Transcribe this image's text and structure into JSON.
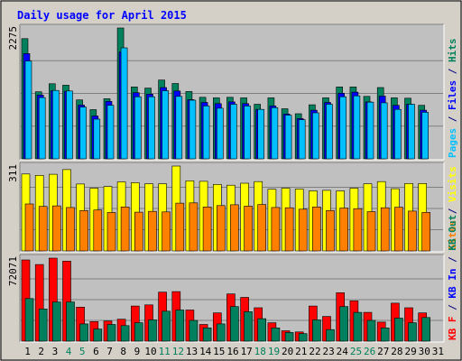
{
  "chart_data": {
    "type": "bar",
    "title": "Daily usage for April 2015",
    "days": [
      "1",
      "2",
      "3",
      "4",
      "5",
      "6",
      "7",
      "8",
      "9",
      "10",
      "11",
      "12",
      "13",
      "14",
      "15",
      "16",
      "17",
      "18",
      "19",
      "20",
      "21",
      "22",
      "23",
      "24",
      "25",
      "26",
      "27",
      "28",
      "29",
      "30",
      "31"
    ],
    "weekend_days": [
      "4",
      "5",
      "11",
      "12",
      "18",
      "19",
      "25",
      "26"
    ],
    "panels": [
      {
        "max_label": "2275",
        "ymax": 2275,
        "side_label": [
          {
            "text": "Pages",
            "color": "#00C0FF"
          },
          {
            "text": " / ",
            "color": "#000080"
          },
          {
            "text": "Files",
            "color": "#0000FF"
          },
          {
            "text": " / ",
            "color": "#000080"
          },
          {
            "text": "Hits",
            "color": "#00805C"
          }
        ],
        "series": [
          {
            "name": "Hits",
            "color": "#00805C",
            "values": [
              2090,
              1165,
              1305,
              1280,
              1025,
              855,
              1045,
              2275,
              1250,
              1230,
              1370,
              1310,
              1170,
              1070,
              1060,
              1070,
              1060,
              950,
              1060,
              870,
              785,
              940,
              1060,
              1250,
              1250,
              1085,
              1240,
              1060,
              1055,
              930
            ]
          },
          {
            "name": "Files",
            "color": "#0000FF",
            "values": [
              1830,
              1110,
              1185,
              1175,
              935,
              745,
              1000,
              1860,
              1150,
              1125,
              1240,
              1180,
              1030,
              980,
              960,
              990,
              960,
              860,
              920,
              780,
              700,
              845,
              980,
              1140,
              1160,
              990,
              1090,
              930,
              950,
              845
            ]
          },
          {
            "name": "Pages",
            "color": "#00C0FF",
            "values": [
              1700,
              1065,
              1190,
              1180,
              900,
              690,
              930,
              1930,
              1080,
              1080,
              1185,
              1085,
              1020,
              920,
              880,
              950,
              920,
              860,
              890,
              760,
              680,
              800,
              950,
              1080,
              1095,
              985,
              975,
              860,
              950,
              810
            ]
          }
        ]
      },
      {
        "max_label": "311",
        "ymax": 311,
        "side_label": [
          {
            "text": "Sites",
            "color": "#FF8000"
          },
          {
            "text": " / ",
            "color": "#000080"
          },
          {
            "text": "Visits",
            "color": "#FFFF00"
          }
        ],
        "series": [
          {
            "name": "Visits",
            "color": "#FFFF00",
            "values": [
              282,
              277,
              281,
              298,
              245,
              230,
              236,
              253,
              250,
              246,
              246,
              311,
              257,
              255,
              244,
              241,
              248,
              254,
              226,
              230,
              227,
              220,
              222,
              220,
              230,
              246,
              254,
              228,
              247,
              247
            ]
          },
          {
            "name": "Sites",
            "color": "#FF8000",
            "values": [
              172,
              163,
              165,
              159,
              148,
              150,
              141,
              161,
              142,
              145,
              143,
              175,
              176,
              161,
              166,
              169,
              164,
              170,
              159,
              158,
              153,
              161,
              148,
              157,
              155,
              144,
              158,
              160,
              146,
              141
            ]
          }
        ]
      },
      {
        "max_label": "72071",
        "ymax": 72071,
        "side_label": [
          {
            "text": "KB F",
            "color": "#FF0000"
          },
          {
            "text": " / ",
            "color": "#000080"
          },
          {
            "text": "KB In",
            "color": "#0000FF"
          },
          {
            "text": " / ",
            "color": "#000080"
          },
          {
            "text": "KB Out",
            "color": "#00805C"
          }
        ],
        "series": [
          {
            "name": "KB F",
            "color": "#FF0000",
            "values": [
              70500,
              66500,
              72071,
              69500,
              29500,
              17000,
              17500,
              19000,
              30500,
              31500,
              42500,
              43000,
              27000,
              14500,
              24500,
              41000,
              38000,
              29000,
              16000,
              9000,
              8000,
              30500,
              21500,
              42000,
              35000,
              25000,
              16500,
              33000,
              29000,
              24500
            ]
          },
          {
            "name": "KB Out",
            "color": "#00805C",
            "values": [
              37000,
              28000,
              34000,
              34000,
              15000,
              10500,
              14500,
              13500,
              16000,
              18500,
              26000,
              27000,
              18000,
              11500,
              15000,
              30000,
              25500,
              19500,
              11500,
              7500,
              6500,
              18500,
              10000,
              30000,
              25000,
              18000,
              11500,
              20000,
              16000,
              20500
            ]
          }
        ]
      }
    ]
  }
}
